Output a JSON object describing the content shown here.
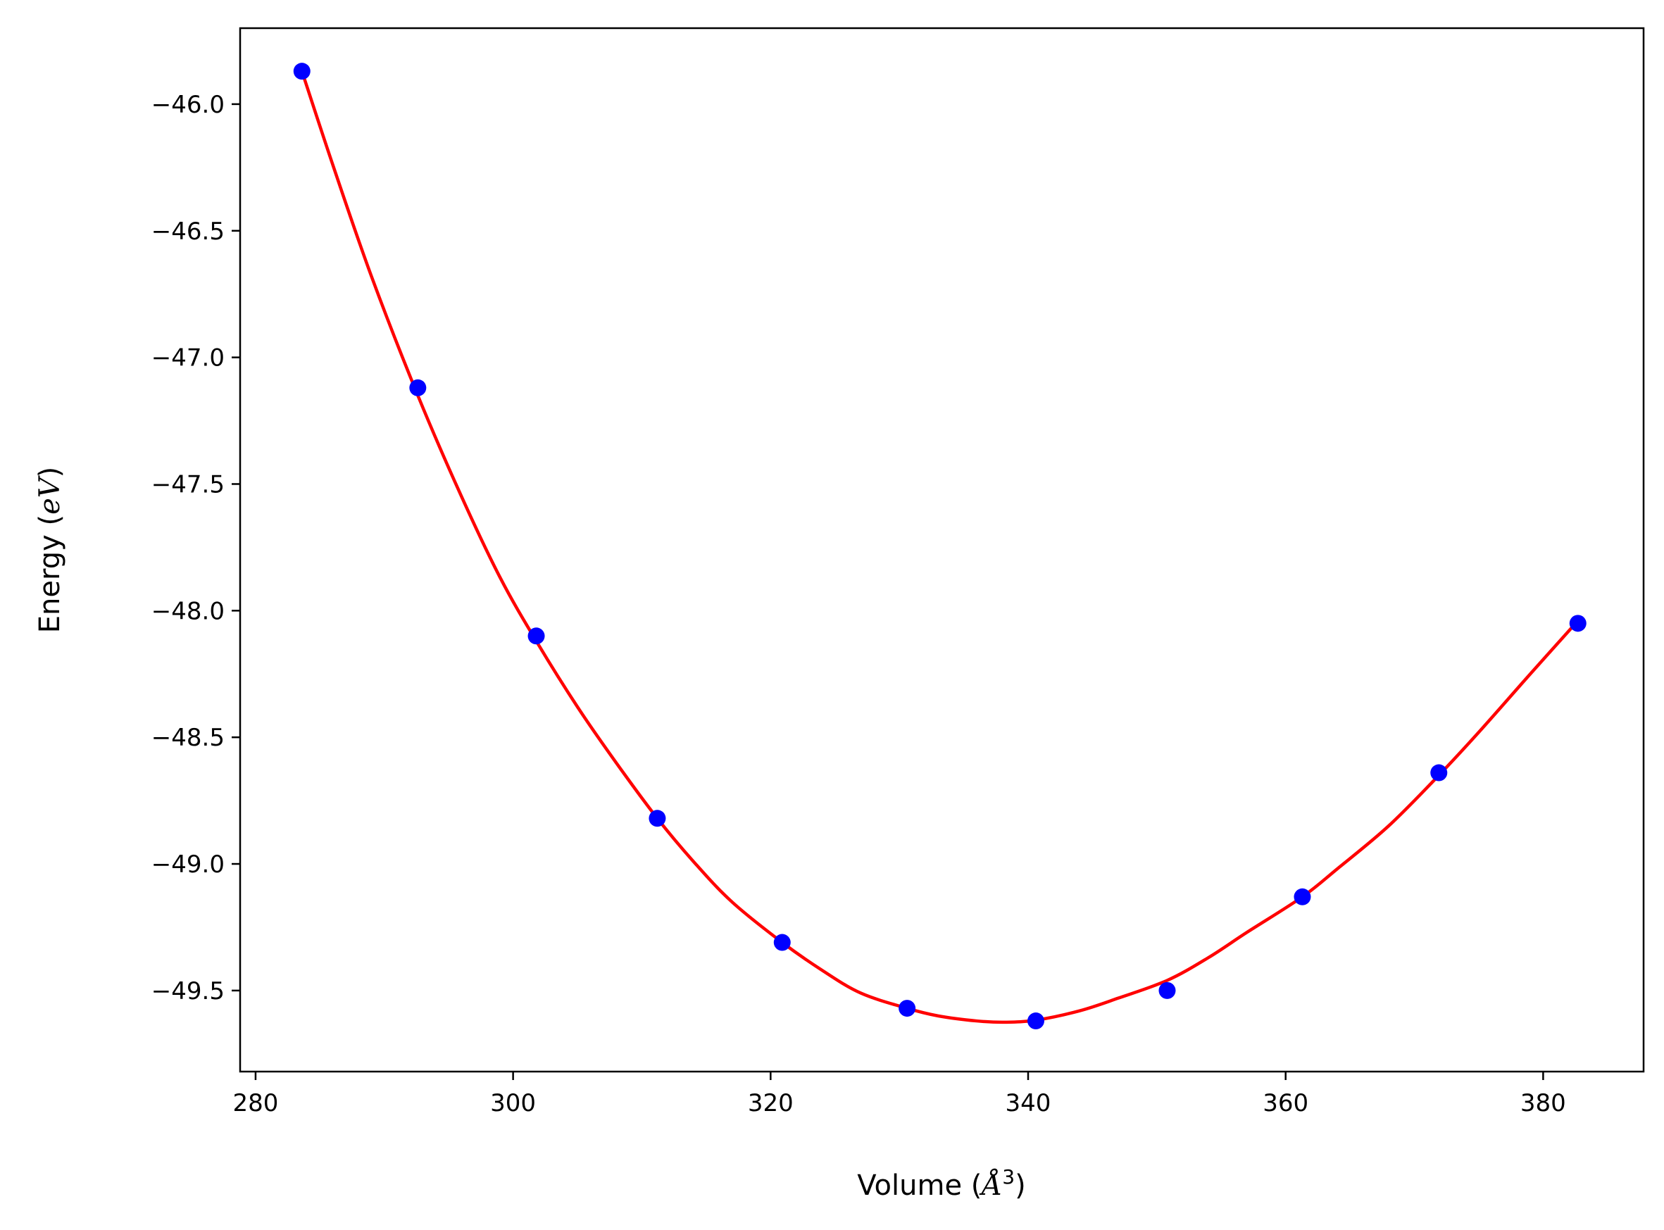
{
  "chart_data": {
    "type": "scatter",
    "title": "",
    "xlabel": "Volume (Å³)",
    "ylabel": "Energy (eV)",
    "xlabel_parts": {
      "prefix": "Volume (",
      "symbol": "Å",
      "exponent": "3",
      "suffix": ")"
    },
    "ylabel_parts": {
      "prefix": "Energy (",
      "symbol": "eV",
      "suffix": ")"
    },
    "xlim": [
      278.8,
      387.8
    ],
    "ylim": [
      -49.82,
      -45.7
    ],
    "xticks": [
      280,
      300,
      320,
      340,
      360,
      380
    ],
    "xtick_labels": [
      "280",
      "300",
      "320",
      "340",
      "360",
      "380"
    ],
    "yticks": [
      -46.0,
      -46.5,
      -47.0,
      -47.5,
      -48.0,
      -48.5,
      -49.0,
      -49.5
    ],
    "ytick_labels": [
      "−46.0",
      "−46.5",
      "−47.0",
      "−47.5",
      "−48.0",
      "−48.5",
      "−49.0",
      "−49.5"
    ],
    "grid": false,
    "series": [
      {
        "kind": "scatter",
        "color": "#0000ff",
        "x": [
          283.6,
          292.6,
          301.8,
          311.2,
          320.9,
          330.6,
          340.6,
          350.8,
          361.3,
          371.9,
          382.7
        ],
        "y": [
          -45.87,
          -47.12,
          -48.1,
          -48.82,
          -49.31,
          -49.57,
          -49.62,
          -49.5,
          -49.13,
          -48.64,
          -48.05
        ]
      },
      {
        "kind": "line",
        "color": "#ff0000",
        "x": [
          283.6,
          286,
          289,
          292.6,
          296,
          299,
          301.8,
          305,
          308,
          311.2,
          314,
          317,
          320.9,
          324,
          327,
          330.6,
          333,
          336,
          338.2,
          340.6,
          344,
          347,
          350.8,
          354,
          357,
          361.3,
          364,
          368,
          371.9,
          375,
          379,
          382.7
        ],
        "y": [
          -45.87,
          -46.24,
          -46.68,
          -47.15,
          -47.55,
          -47.87,
          -48.12,
          -48.38,
          -48.6,
          -48.82,
          -48.99,
          -49.15,
          -49.31,
          -49.42,
          -49.51,
          -49.57,
          -49.6,
          -49.62,
          -49.625,
          -49.617,
          -49.58,
          -49.53,
          -49.46,
          -49.37,
          -49.27,
          -49.13,
          -49.02,
          -48.85,
          -48.65,
          -48.48,
          -48.25,
          -48.04
        ]
      }
    ]
  }
}
